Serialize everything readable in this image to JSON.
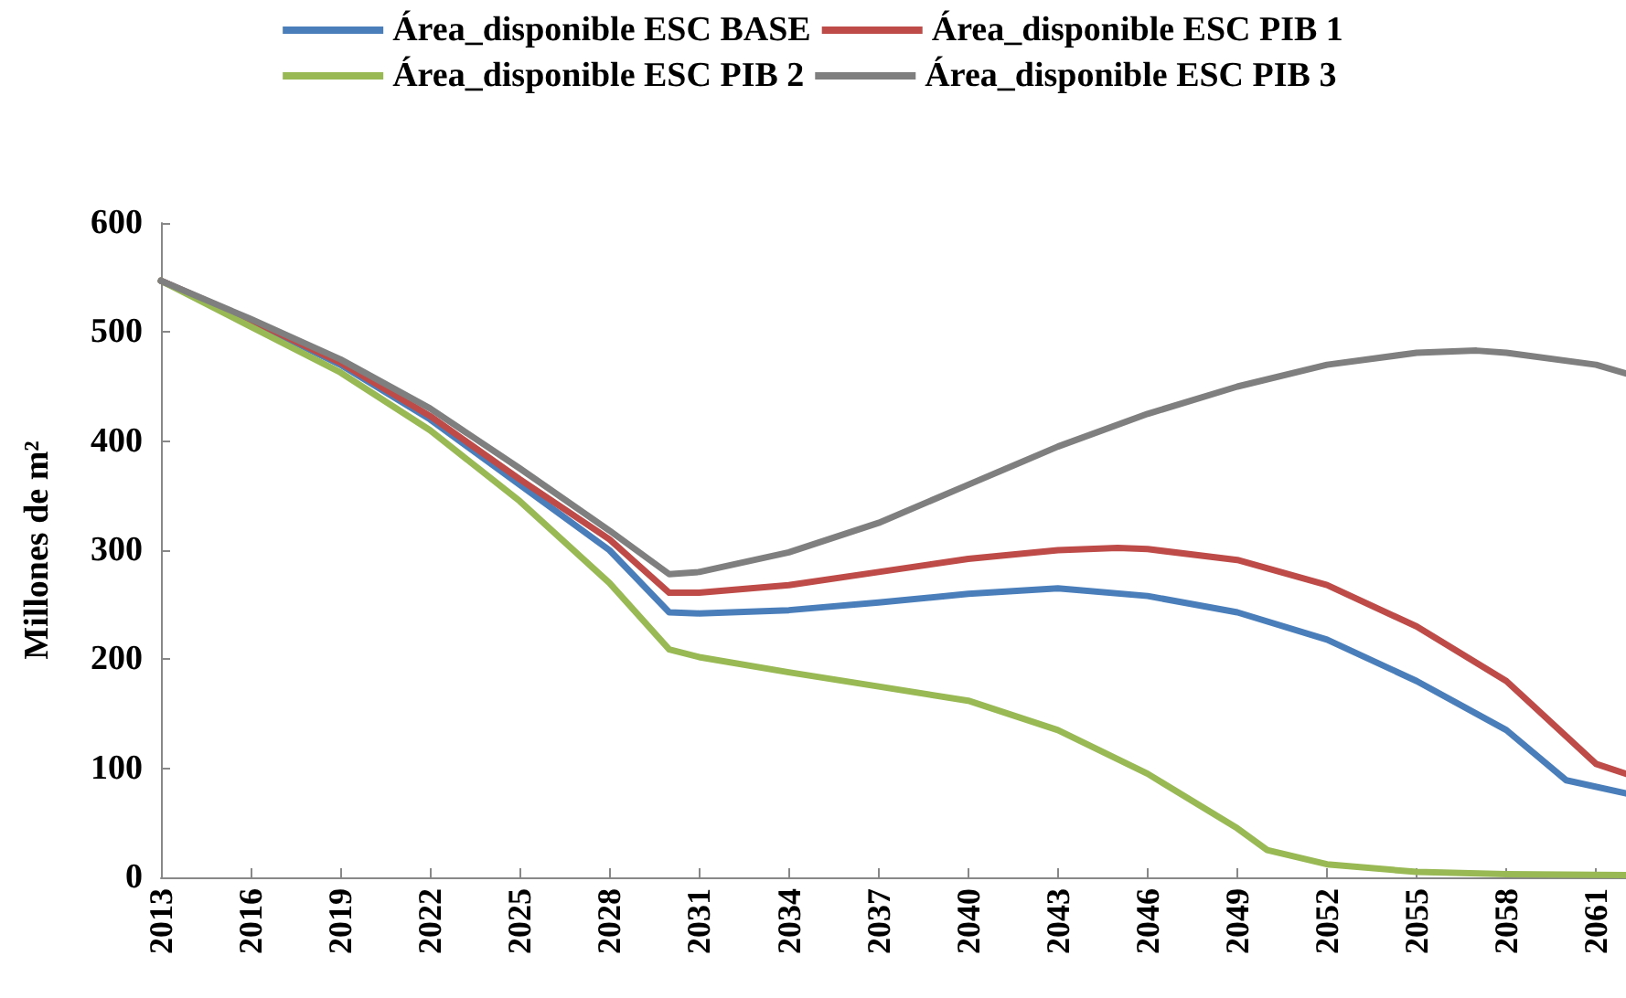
{
  "chart_data": {
    "type": "line",
    "ylabel": "Millones de m²",
    "xlim": [
      2013,
      2062
    ],
    "xticks": [
      2013,
      2016,
      2019,
      2022,
      2025,
      2028,
      2031,
      2034,
      2037,
      2040,
      2043,
      2046,
      2049,
      2052,
      2055,
      2058,
      2061
    ],
    "ylim": [
      0,
      600
    ],
    "yticks": [
      0,
      100,
      200,
      300,
      400,
      500,
      600
    ],
    "grid": false,
    "legend": "top",
    "marker": "none",
    "line_style": "solid",
    "series": [
      {
        "name": "Área_disponible ESC BASE",
        "color": "#4a7ebb",
        "x": [
          2013,
          2016,
          2019,
          2022,
          2025,
          2028,
          2030,
          2031,
          2034,
          2037,
          2040,
          2043,
          2046,
          2049,
          2052,
          2055,
          2058,
          2060,
          2062
        ],
        "values": [
          547,
          510,
          470,
          420,
          360,
          300,
          243,
          242,
          245,
          252,
          260,
          265,
          258,
          243,
          218,
          180,
          135,
          89,
          77
        ]
      },
      {
        "name": "Área_disponible ESC PIB 1",
        "color": "#be4b48",
        "x": [
          2013,
          2016,
          2019,
          2022,
          2025,
          2028,
          2030,
          2031,
          2034,
          2037,
          2040,
          2043,
          2045,
          2046,
          2049,
          2052,
          2055,
          2058,
          2061,
          2062
        ],
        "values": [
          547,
          511,
          472,
          423,
          365,
          310,
          261,
          261,
          268,
          280,
          292,
          300,
          302,
          301,
          291,
          268,
          230,
          180,
          104,
          95
        ]
      },
      {
        "name": "Área_disponible ESC PIB 2",
        "color": "#98b954",
        "x": [
          2013,
          2016,
          2019,
          2022,
          2025,
          2028,
          2030,
          2031,
          2034,
          2037,
          2040,
          2043,
          2046,
          2049,
          2050,
          2052,
          2055,
          2058,
          2062
        ],
        "values": [
          547,
          505,
          463,
          410,
          345,
          270,
          209,
          202,
          188,
          175,
          162,
          135,
          95,
          45,
          25,
          12,
          5,
          3,
          2
        ]
      },
      {
        "name": "Área_disponible ESC PIB 3",
        "color": "#7f7f7f",
        "x": [
          2013,
          2016,
          2019,
          2022,
          2025,
          2028,
          2030,
          2031,
          2034,
          2037,
          2040,
          2043,
          2046,
          2049,
          2052,
          2055,
          2057,
          2058,
          2061,
          2062
        ],
        "values": [
          547,
          512,
          475,
          430,
          375,
          318,
          278,
          280,
          298,
          325,
          360,
          395,
          425,
          450,
          470,
          481,
          483,
          481,
          470,
          462
        ]
      }
    ]
  }
}
